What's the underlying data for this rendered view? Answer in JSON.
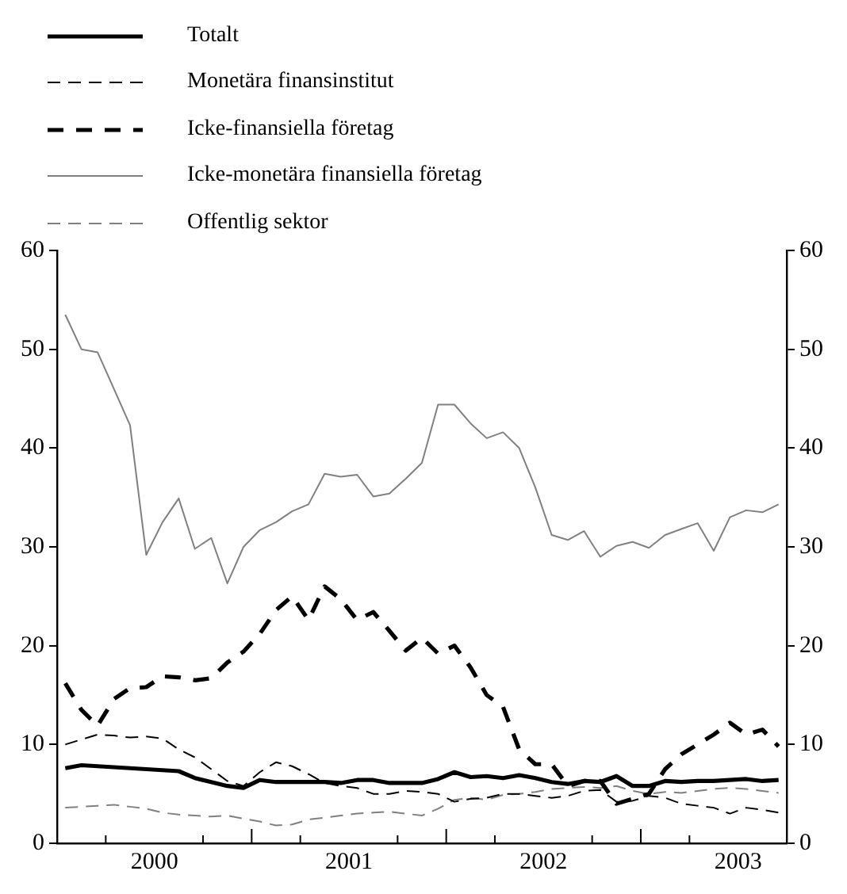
{
  "chart_data": {
    "type": "line",
    "x": [
      2000.042,
      2000.125,
      2000.208,
      2000.292,
      2000.375,
      2000.458,
      2000.542,
      2000.625,
      2000.708,
      2000.792,
      2000.875,
      2000.958,
      2001.042,
      2001.125,
      2001.208,
      2001.292,
      2001.375,
      2001.458,
      2001.542,
      2001.625,
      2001.708,
      2001.792,
      2001.875,
      2001.958,
      2002.042,
      2002.125,
      2002.208,
      2002.292,
      2002.375,
      2002.458,
      2002.542,
      2002.625,
      2002.708,
      2002.792,
      2002.875,
      2002.958,
      2003.042,
      2003.125,
      2003.208,
      2003.292,
      2003.375,
      2003.458,
      2003.542,
      2003.625,
      2003.708
    ],
    "series": [
      {
        "name": "Totalt",
        "color": "#000000",
        "line_style": "solid",
        "values": [
          7.6,
          7.9,
          7.8,
          7.7,
          7.6,
          7.5,
          7.4,
          7.3,
          6.6,
          6.2,
          5.8,
          5.6,
          6.4,
          6.2,
          6.2,
          6.2,
          6.2,
          6.1,
          6.4,
          6.4,
          6.1,
          6.1,
          6.1,
          6.5,
          7.2,
          6.7,
          6.8,
          6.6,
          6.9,
          6.6,
          6.2,
          6.0,
          6.3,
          6.2,
          6.8,
          5.8,
          5.8,
          6.3,
          6.2,
          6.3,
          6.3,
          6.4,
          6.5,
          6.3,
          6.4
        ]
      },
      {
        "name": "Monetära finansinstitut",
        "color": "#000000",
        "line_style": "dashed",
        "values": [
          10.0,
          10.5,
          11.0,
          10.9,
          10.7,
          10.8,
          10.6,
          9.5,
          8.7,
          7.5,
          6.3,
          5.8,
          7.2,
          8.2,
          7.8,
          7.0,
          6.1,
          5.8,
          5.6,
          5.0,
          5.0,
          5.3,
          5.2,
          5.0,
          4.2,
          4.5,
          4.6,
          5.0,
          5.0,
          4.8,
          4.6,
          4.8,
          5.3,
          5.4,
          4.2,
          4.3,
          4.8,
          4.6,
          4.0,
          3.8,
          3.6,
          3.0,
          3.6,
          3.4,
          3.1
        ]
      },
      {
        "name": "Icke-finansiella företag",
        "color": "#000000",
        "line_style": "dashed",
        "values": [
          16.2,
          13.5,
          11.9,
          14.6,
          15.7,
          15.8,
          16.9,
          16.8,
          16.5,
          16.7,
          18.3,
          19.4,
          21.2,
          23.6,
          25.0,
          22.6,
          26.0,
          24.7,
          22.6,
          23.4,
          21.5,
          19.5,
          20.8,
          19.2,
          20.0,
          17.8,
          15.0,
          13.8,
          9.5,
          8.0,
          8.0,
          5.8,
          6.3,
          6.3,
          4.0,
          4.5,
          5.0,
          7.5,
          9.0,
          10.0,
          11.0,
          12.2,
          11.0,
          11.5,
          9.8
        ]
      },
      {
        "name": "Icke-monetära finansiella företag",
        "color": "#808080",
        "line_style": "solid",
        "values": [
          53.5,
          50.0,
          49.7,
          46.0,
          42.3,
          29.2,
          32.5,
          34.9,
          29.8,
          30.9,
          26.3,
          30.0,
          31.7,
          32.5,
          33.6,
          34.3,
          37.4,
          37.1,
          37.3,
          35.1,
          35.4,
          36.9,
          38.5,
          44.4,
          44.4,
          42.5,
          41.0,
          41.6,
          40.0,
          36.0,
          31.2,
          30.7,
          31.6,
          29.0,
          30.1,
          30.5,
          29.9,
          31.2,
          31.8,
          32.4,
          29.6,
          33.0,
          33.7,
          33.5,
          34.3
        ]
      },
      {
        "name": "Offentlig sektor",
        "color": "#808080",
        "line_style": "dashed",
        "values": [
          3.6,
          3.7,
          3.8,
          3.9,
          3.7,
          3.5,
          3.1,
          2.9,
          2.8,
          2.7,
          2.8,
          2.5,
          2.2,
          1.8,
          1.9,
          2.4,
          2.6,
          2.8,
          3.0,
          3.1,
          3.2,
          3.0,
          2.8,
          3.5,
          4.4,
          4.6,
          4.4,
          4.9,
          5.0,
          5.2,
          5.5,
          5.6,
          5.7,
          5.6,
          5.8,
          5.3,
          5.0,
          5.2,
          5.1,
          5.3,
          5.5,
          5.6,
          5.5,
          5.3,
          5.1
        ]
      }
    ],
    "xlim": [
      2000,
      2003.75
    ],
    "xticks": [
      {
        "value": 2000.25,
        "label": null
      },
      {
        "value": 2000.5,
        "label": "2000"
      },
      {
        "value": 2000.75,
        "label": null
      },
      {
        "value": 2001,
        "label": null
      },
      {
        "value": 2001.25,
        "label": null
      },
      {
        "value": 2001.5,
        "label": "2001"
      },
      {
        "value": 2001.75,
        "label": null
      },
      {
        "value": 2002,
        "label": null
      },
      {
        "value": 2002.25,
        "label": null
      },
      {
        "value": 2002.5,
        "label": "2002"
      },
      {
        "value": 2002.75,
        "label": null
      },
      {
        "value": 2003,
        "label": null
      },
      {
        "value": 2003.25,
        "label": null
      },
      {
        "value": 2003.5,
        "label": "2003"
      }
    ],
    "ylim": [
      0,
      60
    ],
    "yticks": [
      0,
      10,
      20,
      30,
      40,
      50,
      60
    ],
    "y2lim": [
      0,
      60
    ],
    "y2ticks": [
      0,
      10,
      20,
      30,
      40,
      50,
      60
    ],
    "legend": "top left",
    "grid": false,
    "marker": "none"
  }
}
